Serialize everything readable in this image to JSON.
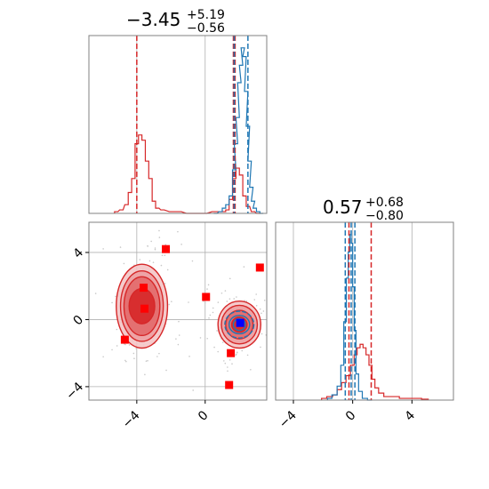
{
  "colors": {
    "red": "#d62728",
    "blue": "#1f77b4",
    "marker_red": "#ff0000",
    "marker_blue": "#0000ff",
    "grid": "#b0b0b0",
    "frame": "#808080"
  },
  "chart_data": [
    {
      "type": "histogram",
      "panel": "marginal-x",
      "title": {
        "main": "−3.45",
        "sup": "+5.19",
        "sub": "−0.56"
      },
      "xlim": [
        -6.8,
        3.6
      ],
      "grid_x": [
        -4,
        0
      ],
      "quantile_lines": {
        "red": [
          -4.0,
          1.65,
          1.75
        ],
        "blue": [
          1.7,
          2.5
        ]
      },
      "series": [
        {
          "name": "",
          "color": "red",
          "x": [
            -5.2,
            -4.9,
            -4.6,
            -4.4,
            -4.2,
            -4.0,
            -3.8,
            -3.6,
            -3.4,
            -3.2,
            -3.0,
            -2.8,
            -2.5,
            -2.0,
            -1.5,
            -1.0,
            -0.5,
            0.0,
            0.5,
            0.8,
            1.1,
            1.3,
            1.5,
            1.7,
            1.9,
            2.1,
            2.3,
            2.5,
            2.8,
            3.1
          ],
          "values": [
            0.01,
            0.02,
            0.05,
            0.12,
            0.2,
            0.4,
            0.45,
            0.42,
            0.3,
            0.2,
            0.07,
            0.03,
            0.02,
            0.01,
            0.01,
            0.0,
            0.0,
            0.0,
            0.01,
            0.01,
            0.01,
            0.02,
            0.08,
            0.2,
            0.26,
            0.22,
            0.1,
            0.04,
            0.01,
            0.0
          ]
        },
        {
          "name": "",
          "color": "blue",
          "x": [
            0.6,
            0.9,
            1.1,
            1.3,
            1.5,
            1.7,
            1.8,
            1.9,
            2.0,
            2.1,
            2.2,
            2.3,
            2.4,
            2.5,
            2.6,
            2.7,
            2.8,
            2.9,
            3.1,
            3.3
          ],
          "values": [
            0.0,
            0.01,
            0.03,
            0.05,
            0.1,
            0.25,
            0.4,
            0.55,
            0.75,
            0.85,
            0.95,
            0.9,
            0.7,
            0.5,
            0.3,
            0.15,
            0.07,
            0.03,
            0.01,
            0.0
          ]
        }
      ],
      "ylim": [
        0,
        1.0
      ]
    },
    {
      "type": "scatter",
      "panel": "joint",
      "xlim": [
        -6.8,
        3.6
      ],
      "ylim": [
        -4.8,
        5.8
      ],
      "xticks": [
        -4,
        0
      ],
      "yticks": [
        -4,
        0,
        4
      ],
      "tick_labels_x": [
        "−4",
        "0"
      ],
      "tick_labels_y": [
        "−4",
        "0",
        "4"
      ],
      "red_contours": [
        {
          "cx": -3.7,
          "cy": 0.8,
          "levels": [
            [
              1.5,
              2.5
            ],
            [
              1.25,
              2.1
            ],
            [
              1.05,
              1.75
            ],
            [
              0.75,
              1.05
            ]
          ]
        },
        {
          "cx": 2.0,
          "cy": -0.3,
          "levels": [
            [
              1.25,
              1.4
            ],
            [
              1.05,
              1.15
            ],
            [
              0.8,
              0.85
            ],
            [
              0.45,
              0.45
            ]
          ]
        }
      ],
      "blue_contours": [
        {
          "cx": 2.0,
          "cy": -0.3,
          "levels": [
            [
              0.85,
              0.8
            ],
            [
              0.6,
              0.55
            ],
            [
              0.35,
              0.35
            ]
          ]
        }
      ],
      "red_squares": [
        {
          "x": -2.3,
          "y": 4.2
        },
        {
          "x": 3.2,
          "y": 3.1
        },
        {
          "x": 0.05,
          "y": 1.35
        },
        {
          "x": -3.6,
          "y": 1.9
        },
        {
          "x": -3.55,
          "y": 0.65
        },
        {
          "x": -4.7,
          "y": -1.2
        },
        {
          "x": 1.5,
          "y": -2.0
        },
        {
          "x": 1.4,
          "y": -3.9
        }
      ],
      "blue_squares": [
        {
          "x": 2.05,
          "y": -0.2
        }
      ]
    },
    {
      "type": "histogram",
      "panel": "marginal-y",
      "title": {
        "main": "0.57",
        "sup": "+0.68",
        "sub": "−0.80"
      },
      "xlim": [
        -5.2,
        6.8
      ],
      "xticks": [
        -4,
        0,
        4
      ],
      "tick_labels_x": [
        "−4",
        "0",
        "4"
      ],
      "grid_x": [
        -4,
        0,
        4
      ],
      "quantile_lines": {
        "red": [
          -0.25,
          1.25
        ],
        "blue": [
          -0.5,
          -0.1,
          0.15
        ]
      },
      "series": [
        {
          "name": "",
          "color": "red",
          "x": [
            -2.0,
            -1.5,
            -1.2,
            -0.9,
            -0.6,
            -0.3,
            0.0,
            0.2,
            0.4,
            0.6,
            0.8,
            1.0,
            1.2,
            1.4,
            1.6,
            1.9,
            2.3,
            2.8,
            3.5,
            4.3,
            5.0
          ],
          "values": [
            0.01,
            0.02,
            0.03,
            0.06,
            0.1,
            0.14,
            0.2,
            0.26,
            0.3,
            0.32,
            0.3,
            0.26,
            0.2,
            0.12,
            0.07,
            0.04,
            0.02,
            0.02,
            0.01,
            0.01,
            0.005
          ]
        },
        {
          "name": "",
          "color": "blue",
          "x": [
            -1.6,
            -1.2,
            -0.9,
            -0.7,
            -0.5,
            -0.35,
            -0.25,
            -0.15,
            -0.05,
            0.05,
            0.15,
            0.3,
            0.5,
            0.8,
            1.2
          ],
          "values": [
            0.01,
            0.03,
            0.08,
            0.2,
            0.45,
            0.7,
            0.85,
            0.95,
            0.9,
            0.65,
            0.4,
            0.15,
            0.05,
            0.01,
            0.0
          ]
        }
      ],
      "ylim": [
        0,
        1.0
      ]
    }
  ]
}
